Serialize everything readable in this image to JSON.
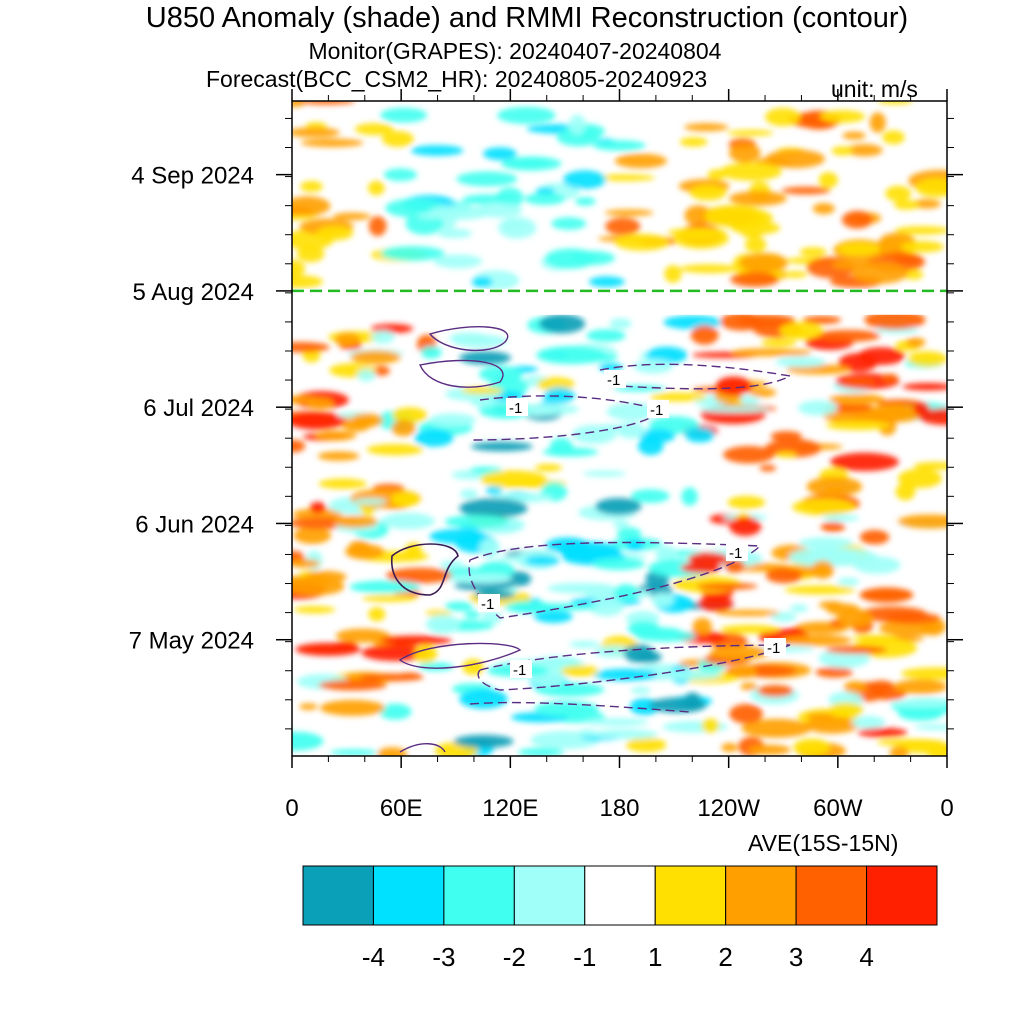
{
  "title": "U850 Anomaly (shade) and RMMI Reconstruction (contour)",
  "subtitle_monitor": "Monitor(GRAPES): 20240407-20240804",
  "subtitle_forecast": "Forecast(BCC_CSM2_HR): 20240805-20240923",
  "unit_label": "unit: m/s",
  "avg_label": "AVE(15S-15N)",
  "chart_data": {
    "type": "heatmap",
    "title": "U850 Anomaly (shade) and RMMI Reconstruction (contour)",
    "x_ticks": [
      "0",
      "60E",
      "120E",
      "180",
      "120W",
      "60W",
      "0"
    ],
    "x_values": [
      0,
      60,
      120,
      180,
      240,
      300,
      360
    ],
    "xlim": [
      0,
      360
    ],
    "y_ticks": [
      "4 Sep 2024",
      "5 Aug 2024",
      "6 Jul 2024",
      "6 Jun 2024",
      "7 May 2024"
    ],
    "ylim": [
      "2024-04-07",
      "2024-09-23"
    ],
    "monitor_period": [
      "2024-04-07",
      "2024-08-04"
    ],
    "forecast_period": [
      "2024-08-05",
      "2024-09-23"
    ],
    "forecast_start_line": "5 Aug 2024",
    "forecast_line_color": "#22bb22",
    "colorbar": {
      "levels": [
        "-4",
        "-3",
        "-2",
        "-1",
        "1",
        "2",
        "3",
        "4"
      ],
      "colors": [
        "#0aa0b8",
        "#00e0ff",
        "#40fff0",
        "#a0fff8",
        "#ffffff",
        "#ffe000",
        "#ffa000",
        "#ff6000",
        "#ff2000"
      ]
    },
    "contour_labels": [
      "-1",
      "-1",
      "-1",
      "-1",
      "-1",
      "-1",
      "-1"
    ],
    "contour_color": "#5a2d82"
  }
}
